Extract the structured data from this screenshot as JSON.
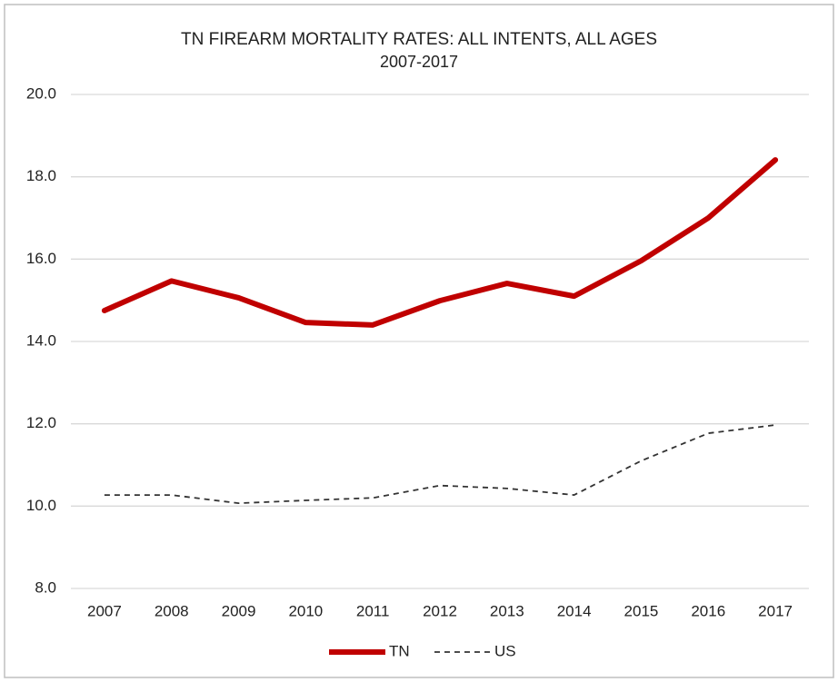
{
  "chart_data": {
    "type": "line",
    "title": "TN FIREARM MORTALITY RATES: ALL INTENTS, ALL AGES",
    "subtitle": "2007-2017",
    "categories": [
      "2007",
      "2008",
      "2009",
      "2010",
      "2011",
      "2012",
      "2013",
      "2014",
      "2015",
      "2016",
      "2017"
    ],
    "series": [
      {
        "name": "TN",
        "color": "#c00000",
        "dash": "solid",
        "values": [
          14.75,
          15.47,
          15.06,
          14.46,
          14.4,
          14.99,
          15.41,
          15.1,
          15.96,
          17.0,
          18.41
        ]
      },
      {
        "name": "US",
        "color": "#333333",
        "dash": "dashed",
        "values": [
          10.27,
          10.27,
          10.07,
          10.14,
          10.2,
          10.5,
          10.43,
          10.27,
          11.1,
          11.77,
          11.97
        ]
      }
    ],
    "ylim": [
      8,
      20
    ],
    "yticks": [
      {
        "value": 8,
        "label": "8.0"
      },
      {
        "value": 10,
        "label": "10.0"
      },
      {
        "value": 12,
        "label": "12.0"
      },
      {
        "value": 14,
        "label": "14.0"
      },
      {
        "value": 16,
        "label": "16.0"
      },
      {
        "value": 18,
        "label": "18.0"
      },
      {
        "value": 20,
        "label": "20.0"
      }
    ],
    "grid": true,
    "legend": "bottom"
  }
}
